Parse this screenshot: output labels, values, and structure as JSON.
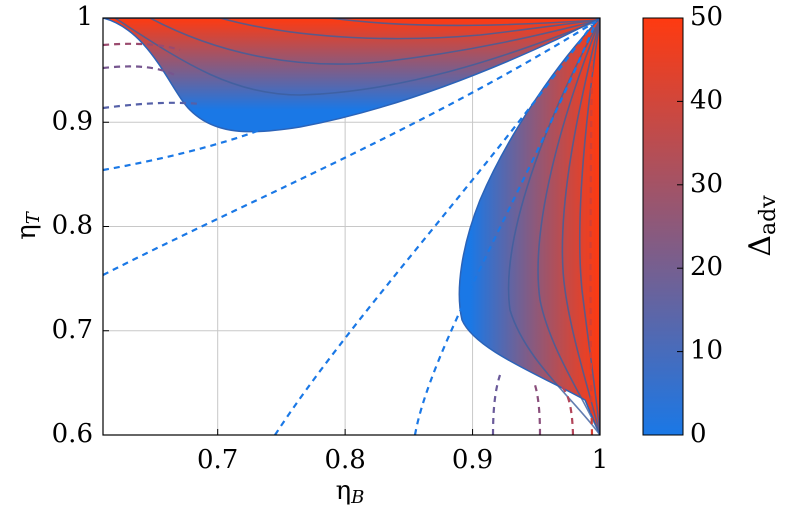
{
  "chart_data": {
    "type": "contour",
    "x_label": {
      "symbol": "η",
      "subscript": "B"
    },
    "y_label": {
      "symbol": "η",
      "subscript": "T"
    },
    "colorbar_label": {
      "symbol": "Δ",
      "subscript": "adv"
    },
    "xlim": [
      0.61,
      1
    ],
    "xticks": [
      0.7,
      0.8,
      0.9,
      1
    ],
    "ylim": [
      0.6,
      1
    ],
    "yticks": [
      0.6,
      0.7,
      0.8,
      0.9,
      1
    ],
    "clim": [
      0,
      50
    ],
    "cticks": [
      0,
      10,
      20,
      30,
      40,
      50
    ],
    "colormap": [
      "#1a78e6",
      "#ff3a10"
    ],
    "grid": true
  }
}
